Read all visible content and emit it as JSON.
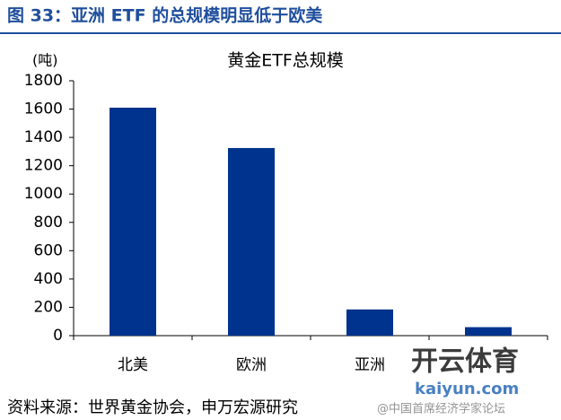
{
  "header": "图 33：亚洲 ETF 的总规模明显低于欧美",
  "chart_data": {
    "type": "bar",
    "title": "黄金ETF总规模",
    "y_label": "(吨)",
    "categories": [
      "北美",
      "欧洲",
      "亚洲",
      null
    ],
    "values": [
      1610,
      1325,
      185,
      60
    ],
    "color": "#00338d",
    "ylim": [
      0,
      1800
    ],
    "yticks": [
      0,
      200,
      400,
      600,
      800,
      1000,
      1200,
      1400,
      1600,
      1800
    ],
    "grid": false
  },
  "source": "资料来源：世界黄金协会，申万宏源研究",
  "watermark": {
    "brand": "开云体育",
    "url": "kaiyun.com",
    "handle": "@中国首席经济学家论坛"
  }
}
